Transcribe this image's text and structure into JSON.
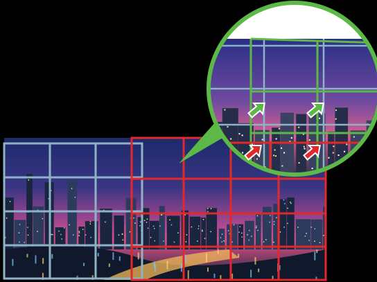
{
  "figure": {
    "background": "#000000",
    "colors": {
      "grid_blue": "#8fb3c6",
      "grid_red": "#e3282c",
      "grid_green": "#5cb947",
      "sky_top": "#1d2a6b",
      "sky_mid": "#6a3f8f",
      "sky_horizon": "#d9508a",
      "water": "#1b2638",
      "lights": "#ffe08a"
    },
    "panels": [
      {
        "name": "left-panorama-grid",
        "color_key": "grid_blue",
        "cols": 3,
        "rows": 4
      },
      {
        "name": "right-panorama-grid",
        "color_key": "grid_red",
        "cols": 4,
        "rows": 4
      }
    ],
    "magnifier": {
      "shape": "circle",
      "border_color_key": "grid_green",
      "arrows": [
        {
          "name": "green-arrow-left",
          "color_key": "grid_green"
        },
        {
          "name": "green-arrow-right",
          "color_key": "grid_green"
        },
        {
          "name": "red-arrow-left",
          "color_key": "grid_red"
        },
        {
          "name": "red-arrow-right",
          "color_key": "grid_red"
        }
      ]
    },
    "icons": [
      "arrow-icon"
    ]
  }
}
